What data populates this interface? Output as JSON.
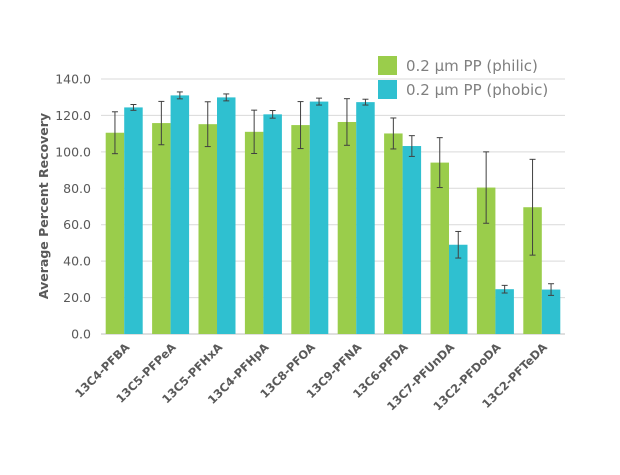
{
  "chart_data": {
    "type": "bar",
    "ylabel": "Average Percent Recovery",
    "xlabel": "",
    "ylim": [
      0,
      140
    ],
    "ytick_step": 20,
    "ytick_labels": [
      "0.0",
      "20.0",
      "40.0",
      "60.0",
      "80.0",
      "100.0",
      "120.0",
      "140.0"
    ],
    "grid": true,
    "legend_position": "top-right",
    "categories": [
      "13C4-PFBA",
      "13C5-PFPeA",
      "13C5-PFHxA",
      "13C4-PFHpA",
      "13C8-PFOA",
      "13C9-PFNA",
      "13C6-PFDA",
      "13C7-PFUnDA",
      "13C2-PFDoDA",
      "13C2-PFTeDA"
    ],
    "series": [
      {
        "name": "0.2 µm PP (philic)",
        "color": "#9ACD4B",
        "values": [
          110.5,
          115.8,
          115.2,
          111.0,
          114.7,
          116.4,
          110.1,
          94.1,
          80.4,
          69.6
        ],
        "errors": [
          11.5,
          11.9,
          12.3,
          11.9,
          12.9,
          12.8,
          8.5,
          13.7,
          19.6,
          26.3
        ]
      },
      {
        "name": "0.2 µm PP (phobic)",
        "color": "#2FC0D0",
        "values": [
          124.4,
          131.0,
          129.9,
          120.6,
          127.6,
          127.3,
          103.2,
          49.0,
          24.6,
          24.4
        ],
        "errors": [
          1.6,
          1.9,
          1.9,
          2.1,
          1.9,
          1.6,
          5.7,
          7.3,
          2.1,
          3.2
        ]
      }
    ]
  }
}
